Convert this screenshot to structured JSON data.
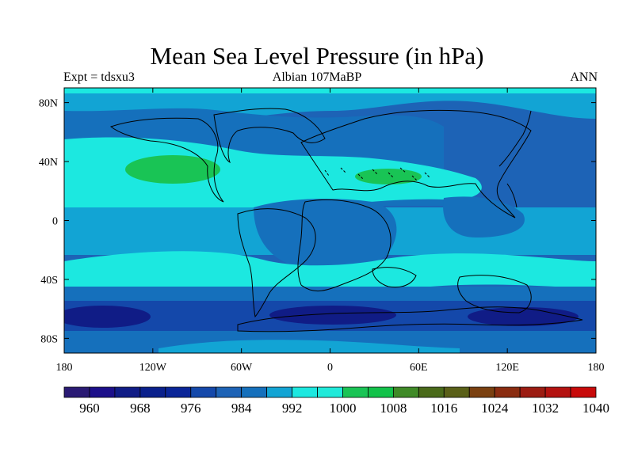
{
  "title": "Mean Sea Level Pressure (in hPa)",
  "left_label": "Expt = tdsxu3",
  "center_label": "Albian   107MaBP",
  "right_label": "ANN",
  "colors": {
    "land_outline": "#000000",
    "levels": [
      "#2a1a74",
      "#1c0f8a",
      "#101c86",
      "#0a208c",
      "#0a2598",
      "#1448aa",
      "#1d63b6",
      "#1570bc",
      "#12a4d4",
      "#1ce8e0",
      "#20eada",
      "#19c455",
      "#12c24a",
      "#3f8a27",
      "#4a6a1a",
      "#5a6018",
      "#7a4010",
      "#8a2c10",
      "#9c1c12",
      "#b41210",
      "#c80a0a"
    ]
  },
  "chart_data": {
    "type": "heatmap",
    "variable": "Mean Sea Level Pressure",
    "units": "hPa",
    "x_ticks": [
      "180",
      "120W",
      "60W",
      "0",
      "60E",
      "120E",
      "180"
    ],
    "y_ticks": [
      "80N",
      "40N",
      "0",
      "40S",
      "80S"
    ],
    "colorbar_ticks": [
      "960",
      "968",
      "976",
      "984",
      "992",
      "1000",
      "1008",
      "1016",
      "1024",
      "1032",
      "1040"
    ],
    "colorbar_range": [
      960,
      1040
    ],
    "lon_range": [
      -180,
      180
    ],
    "lat_range": [
      -90,
      90
    ]
  }
}
